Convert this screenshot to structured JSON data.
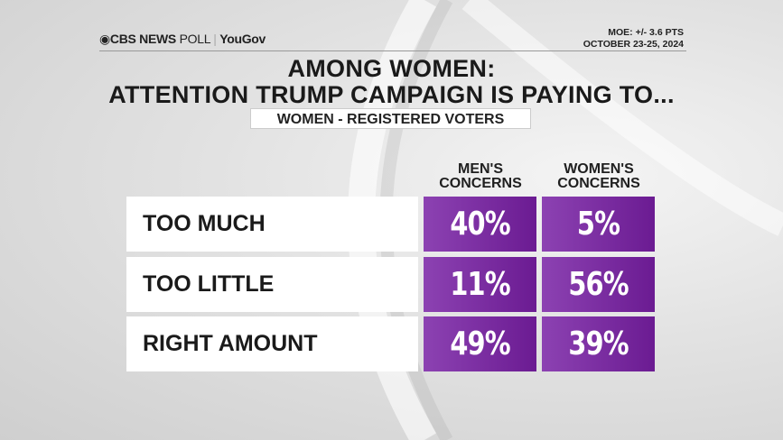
{
  "header": {
    "logo_cbs": "CBS NEWS",
    "logo_poll": "POLL",
    "logo_sep": "|",
    "logo_yougov": "YouGov",
    "moe": "MOE: +/- 3.6 PTS",
    "dates": "OCTOBER 23-25, 2024"
  },
  "chart_data": {
    "type": "table",
    "title_line1": "AMONG WOMEN:",
    "title_line2": "ATTENTION TRUMP CAMPAIGN IS PAYING TO...",
    "subtitle": "WOMEN - REGISTERED VOTERS",
    "columns": [
      "MEN'S CONCERNS",
      "WOMEN'S CONCERNS"
    ],
    "rows": [
      {
        "label": "TOO MUCH",
        "values": [
          "40%",
          "5%"
        ]
      },
      {
        "label": "TOO LITTLE",
        "values": [
          "11%",
          "56%"
        ]
      },
      {
        "label": "RIGHT AMOUNT",
        "values": [
          "49%",
          "39%"
        ]
      }
    ],
    "cell_color": "#7a2ca2"
  }
}
